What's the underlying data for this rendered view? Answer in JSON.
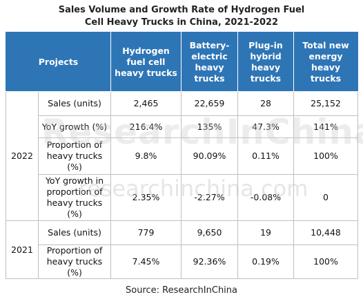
{
  "title": "Sales Volume and Growth Rate of Hydrogen Fuel Cell Heavy Trucks in China, 2021-2022",
  "table": {
    "header": [
      "Projects",
      "Hydrogen fuel cell heavy trucks",
      "Battery-electric heavy trucks",
      "Plug-in hybrid heavy trucks",
      "Total new energy heavy trucks"
    ],
    "groups": [
      {
        "year": "2022",
        "rows": [
          {
            "label": "Sales (units)",
            "cells": [
              "2,465",
              "22,659",
              "28",
              "25,152"
            ]
          },
          {
            "label": "YoY growth (%)",
            "cells": [
              "216.4%",
              "135%",
              "47.3%",
              "141%"
            ]
          },
          {
            "label": "Proportion of heavy trucks (%)",
            "cells": [
              "9.8%",
              "90.09%",
              "0.11%",
              "100%"
            ]
          },
          {
            "label": "YoY growth in proportion of heavy trucks (%)",
            "cells": [
              "2.35%",
              "-2.27%",
              "-0.08%",
              "0"
            ]
          }
        ]
      },
      {
        "year": "2021",
        "rows": [
          {
            "label": "Sales (units)",
            "cells": [
              "779",
              "9,650",
              "19",
              "10,448"
            ]
          },
          {
            "label": "Proportion of heavy trucks (%)",
            "cells": [
              "7.45%",
              "92.36%",
              "0.19%",
              "100%"
            ]
          }
        ]
      }
    ]
  },
  "watermark": {
    "brand": "ResearchInChina",
    "url": "researchinchina.com"
  },
  "source": "Source: ResearchInChina"
}
